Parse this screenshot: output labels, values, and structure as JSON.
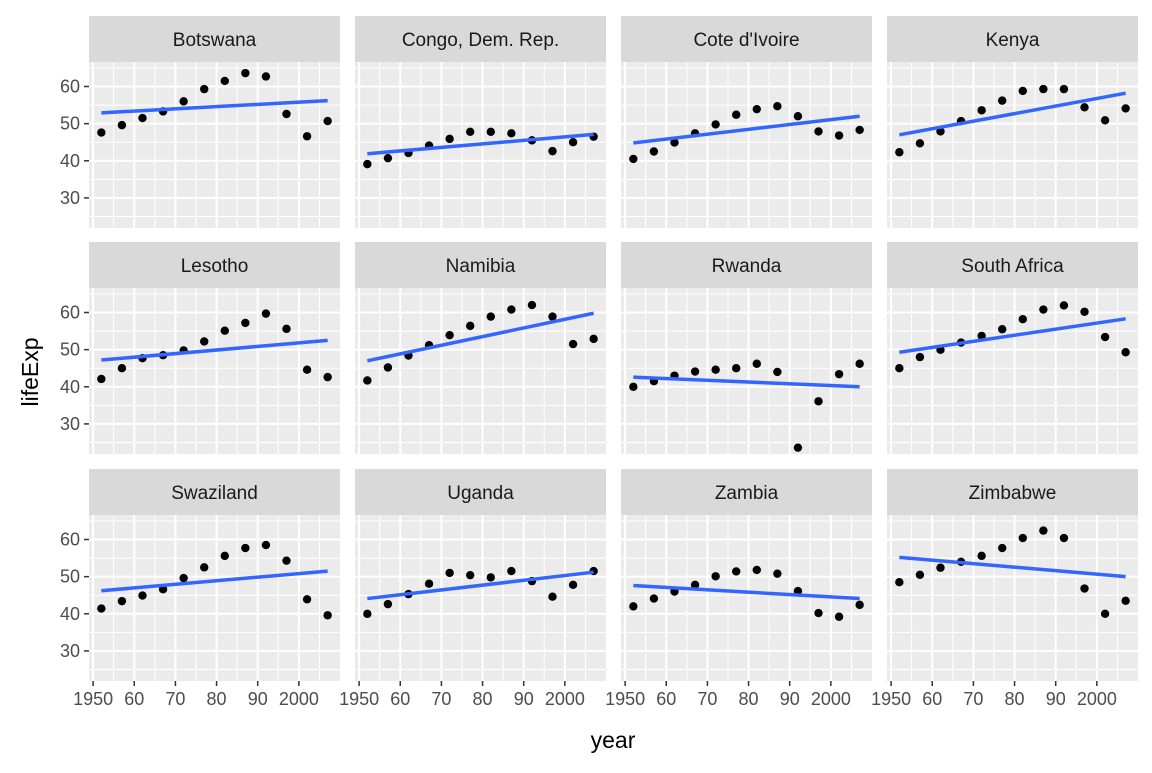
{
  "chart_data": {
    "type": "scatter",
    "facet_layout": "4 columns x 3 rows",
    "xlabel": "year",
    "ylabel": "lifeExp",
    "xlim": [
      1949,
      2010
    ],
    "ylim": [
      21.9,
      66.6
    ],
    "x_ticks": [
      1950,
      1960,
      1970,
      1980,
      1990,
      2000
    ],
    "x_tick_labels": [
      "1950",
      "60",
      "70",
      "80",
      "90",
      "2000"
    ],
    "y_ticks": [
      30,
      40,
      50,
      60
    ],
    "y_tick_labels": [
      "30",
      "40",
      "50",
      "60"
    ],
    "x": [
      1952,
      1957,
      1962,
      1967,
      1972,
      1977,
      1982,
      1987,
      1992,
      1997,
      2002,
      2007
    ],
    "grid": true,
    "colors": {
      "panel_bg": "#ebebeb",
      "strip_bg": "#d9d9d9",
      "grid": "#ffffff",
      "point": "#000000",
      "trend_line": "#3366ff",
      "axis_text": "#4d4d4d",
      "title_text": "#000000",
      "strip_text": "#1a1a1a"
    },
    "facets": [
      {
        "name": "Botswana",
        "values": [
          47.6,
          49.6,
          51.5,
          53.3,
          56.0,
          59.3,
          61.5,
          63.6,
          62.7,
          52.6,
          46.6,
          50.7
        ],
        "trend": [
          52.9,
          56.2
        ]
      },
      {
        "name": "Congo, Dem. Rep.",
        "values": [
          39.1,
          40.7,
          42.1,
          44.1,
          45.9,
          47.8,
          47.8,
          47.4,
          45.5,
          42.6,
          45.0,
          46.5
        ],
        "trend": [
          41.9,
          47.1
        ]
      },
      {
        "name": "Cote d'Ivoire",
        "values": [
          40.5,
          42.5,
          44.9,
          47.4,
          49.8,
          52.4,
          53.9,
          54.7,
          52.0,
          47.9,
          46.8,
          48.3
        ],
        "trend": [
          44.8,
          52.0
        ]
      },
      {
        "name": "Kenya",
        "values": [
          42.3,
          44.7,
          47.9,
          50.7,
          53.6,
          56.2,
          58.8,
          59.3,
          59.3,
          54.4,
          50.9,
          54.1
        ],
        "trend": [
          47.0,
          58.2
        ]
      },
      {
        "name": "Lesotho",
        "values": [
          42.1,
          45.0,
          47.7,
          48.5,
          49.8,
          52.2,
          55.1,
          57.2,
          59.7,
          55.6,
          44.6,
          42.6
        ],
        "trend": [
          47.2,
          52.5
        ]
      },
      {
        "name": "Namibia",
        "values": [
          41.7,
          45.2,
          48.4,
          51.2,
          53.9,
          56.4,
          58.9,
          60.8,
          62.0,
          58.9,
          51.5,
          52.9
        ],
        "trend": [
          47.0,
          59.8
        ]
      },
      {
        "name": "Rwanda",
        "values": [
          40.0,
          41.5,
          43.0,
          44.1,
          44.6,
          45.0,
          46.2,
          44.0,
          23.6,
          36.1,
          43.4,
          46.2
        ],
        "trend": [
          42.6,
          40.0
        ]
      },
      {
        "name": "South Africa",
        "values": [
          45.0,
          47.99,
          49.95,
          51.9,
          53.7,
          55.5,
          58.2,
          60.8,
          61.9,
          60.2,
          53.4,
          49.3
        ],
        "trend": [
          49.3,
          58.3
        ]
      },
      {
        "name": "Swaziland",
        "values": [
          41.4,
          43.4,
          44.9,
          46.6,
          49.6,
          52.5,
          55.6,
          57.7,
          58.5,
          54.3,
          43.9,
          39.6
        ],
        "trend": [
          46.2,
          51.5
        ]
      },
      {
        "name": "Uganda",
        "values": [
          39.98,
          42.6,
          45.3,
          48.1,
          51.0,
          50.4,
          49.8,
          51.5,
          48.8,
          44.6,
          47.8,
          51.5
        ],
        "trend": [
          44.1,
          51.2
        ]
      },
      {
        "name": "Zambia",
        "values": [
          42.0,
          44.1,
          46.0,
          47.8,
          50.1,
          51.4,
          51.8,
          50.8,
          46.1,
          40.2,
          39.2,
          42.4
        ],
        "trend": [
          47.6,
          44.1
        ]
      },
      {
        "name": "Zimbabwe",
        "values": [
          48.5,
          50.5,
          52.4,
          54.0,
          55.6,
          57.7,
          60.4,
          62.4,
          60.4,
          46.8,
          40.0,
          43.5
        ],
        "trend": [
          55.2,
          50.0
        ]
      }
    ]
  }
}
